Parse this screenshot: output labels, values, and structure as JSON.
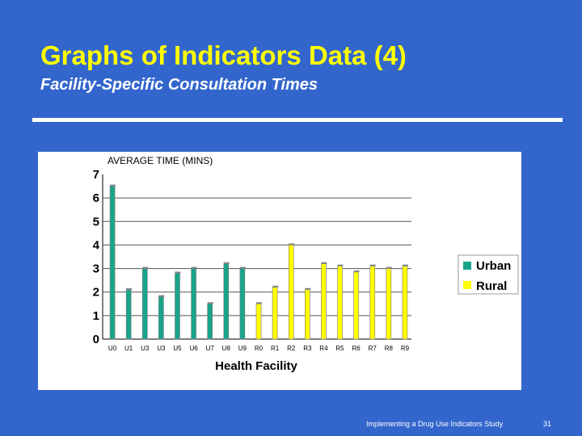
{
  "slide": {
    "title": "Graphs of Indicators Data (4)",
    "subtitle": "Facility-Specific Consultation Times",
    "footer": "Implementing a Drug Use Indicators Study",
    "page_number": "31"
  },
  "colors": {
    "background": "#3366cc",
    "title": "#ffff00",
    "urban": "#19a58a",
    "rural": "#ffff00"
  },
  "chart_data": {
    "type": "bar",
    "ylabel": "AVERAGE TIME (MINS)",
    "xlabel": "Health Facility",
    "ylim": [
      0,
      7
    ],
    "yticks": [
      0,
      1,
      2,
      3,
      4,
      5,
      6,
      7
    ],
    "grid": true,
    "legend_position": "right",
    "categories": [
      "U0",
      "U1",
      "U3",
      "U3",
      "U5",
      "U6",
      "U7",
      "U8",
      "U9",
      "R0",
      "R1",
      "R2",
      "R3",
      "R4",
      "R5",
      "R6",
      "R7",
      "R8",
      "R9"
    ],
    "series": [
      {
        "name": "Urban",
        "values": [
          6.5,
          2.1,
          3.0,
          1.8,
          2.8,
          3.0,
          1.5,
          3.2,
          3.0,
          null,
          null,
          null,
          null,
          null,
          null,
          null,
          null,
          null,
          null
        ]
      },
      {
        "name": "Rural",
        "values": [
          null,
          null,
          null,
          null,
          null,
          null,
          null,
          null,
          null,
          1.5,
          2.2,
          4.0,
          2.1,
          3.2,
          3.1,
          2.85,
          3.1,
          3.0,
          3.1
        ]
      }
    ]
  }
}
